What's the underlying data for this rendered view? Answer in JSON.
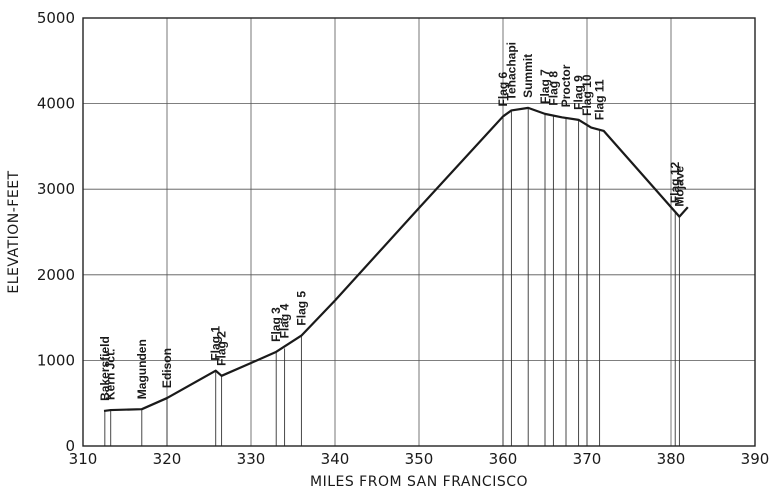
{
  "chart_data": {
    "type": "line",
    "title": "",
    "xlabel": "MILES FROM SAN FRANCISCO",
    "ylabel": "ELEVATION-FEET",
    "xlim": [
      310,
      390
    ],
    "ylim": [
      0,
      5000
    ],
    "x_ticks": [
      "310",
      "320",
      "330",
      "340",
      "350",
      "360",
      "370",
      "380",
      "390"
    ],
    "y_ticks": [
      "0",
      "1000",
      "2000",
      "3000",
      "4000",
      "5000"
    ],
    "grid": true,
    "series": [
      {
        "x": [
          312.5,
          313.3,
          317,
          320,
          325.8,
          326.5,
          330,
          333,
          336,
          340,
          350,
          360,
          361,
          363,
          365,
          367,
          369,
          370.5,
          372,
          381,
          382
        ],
        "y": [
          410,
          420,
          430,
          560,
          880,
          820,
          970,
          1100,
          1290,
          1700,
          2780,
          3850,
          3920,
          3950,
          3880,
          3840,
          3810,
          3720,
          3680,
          2680,
          2790
        ]
      }
    ],
    "stations": [
      {
        "name": "Bakersfield",
        "x": 312.6,
        "y": 410
      },
      {
        "name": "Kern Jct.",
        "x": 313.3,
        "y": 420
      },
      {
        "name": "Magunden",
        "x": 317.0,
        "y": 430
      },
      {
        "name": "Edison",
        "x": 320.0,
        "y": 560
      },
      {
        "name": "Flag 1",
        "x": 325.8,
        "y": 880
      },
      {
        "name": "Flag 2",
        "x": 326.5,
        "y": 820
      },
      {
        "name": "Flag 3",
        "x": 333.0,
        "y": 1100
      },
      {
        "name": "Flag 4",
        "x": 334.0,
        "y": 1140
      },
      {
        "name": "Flag 5",
        "x": 336.0,
        "y": 1290
      },
      {
        "name": "Flag 6",
        "x": 360.0,
        "y": 3850
      },
      {
        "name": "Tehachapi",
        "x": 361.0,
        "y": 3920
      },
      {
        "name": "Summit",
        "x": 363.0,
        "y": 3950
      },
      {
        "name": "Flag 7",
        "x": 365.0,
        "y": 3880
      },
      {
        "name": "Flag 8",
        "x": 366.0,
        "y": 3860
      },
      {
        "name": "Proctor",
        "x": 367.5,
        "y": 3840
      },
      {
        "name": "Flag 9",
        "x": 369.0,
        "y": 3810
      },
      {
        "name": "Flag 10",
        "x": 370.0,
        "y": 3740
      },
      {
        "name": "Flag 11",
        "x": 371.5,
        "y": 3690
      },
      {
        "name": "Flag 12",
        "x": 380.5,
        "y": 2720
      },
      {
        "name": "Mojave",
        "x": 381.0,
        "y": 2680
      }
    ]
  }
}
